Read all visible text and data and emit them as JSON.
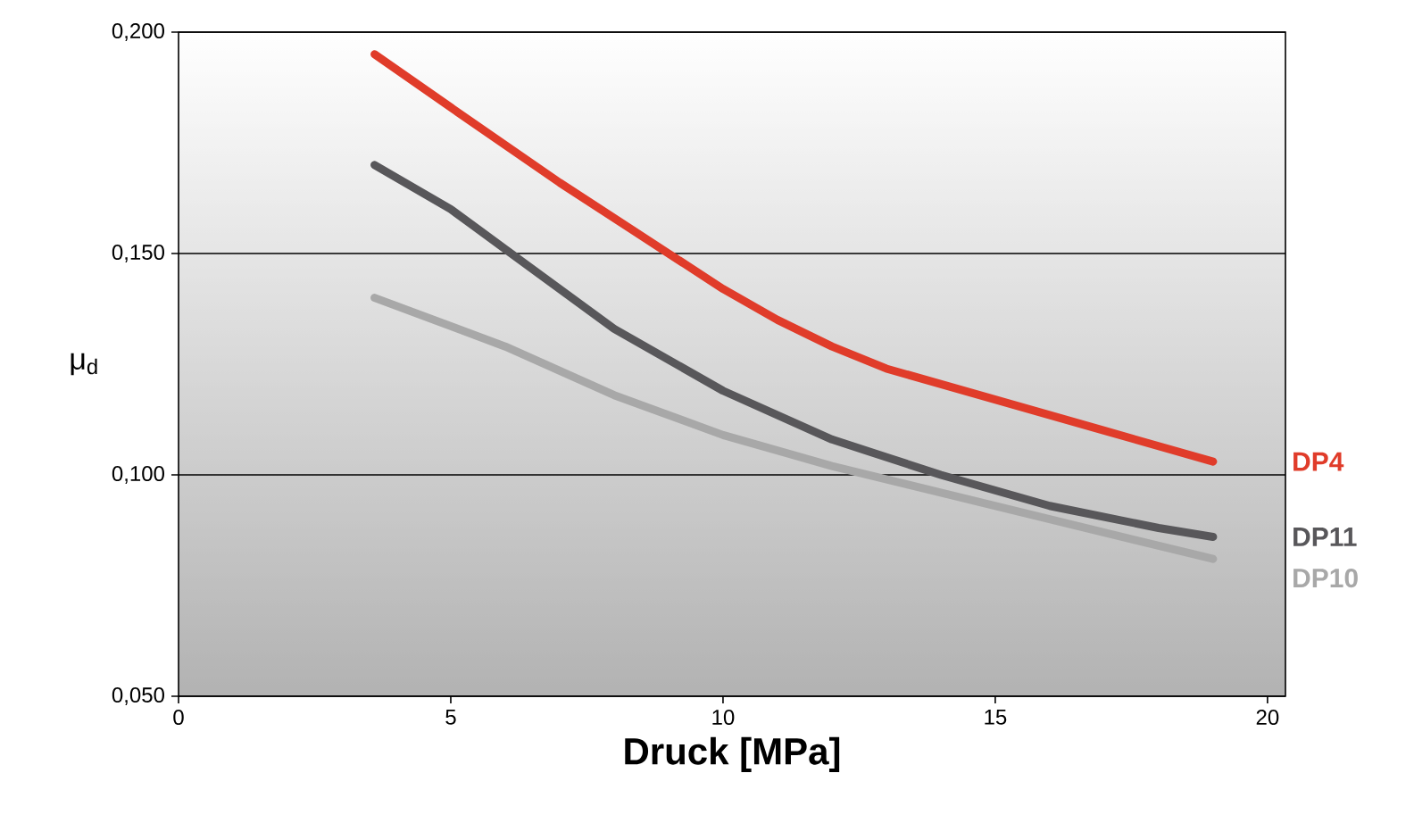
{
  "chart_data": {
    "type": "line",
    "xlabel": "Druck [MPa]",
    "ylabel": "μ$_{d}$",
    "xlim": [
      0,
      20.33
    ],
    "xticks": [
      0,
      5,
      10,
      15,
      20
    ],
    "ylim": [
      0.05,
      0.2
    ],
    "yticks": [
      {
        "value": 0.05,
        "label": "0,050"
      },
      {
        "value": 0.1,
        "label": "0,100"
      },
      {
        "value": 0.15,
        "label": "0,150"
      },
      {
        "value": 0.2,
        "label": "0,200"
      }
    ],
    "grid": "y",
    "series": [
      {
        "name": "DP4",
        "color": "#e03c2a",
        "x": [
          3.6,
          5,
          7,
          9,
          10,
          11,
          12,
          13,
          15,
          17,
          19
        ],
        "values": [
          0.195,
          0.183,
          0.166,
          0.15,
          0.142,
          0.135,
          0.129,
          0.124,
          0.117,
          0.11,
          0.103
        ]
      },
      {
        "name": "DP11",
        "color": "#58575a",
        "x": [
          3.6,
          5,
          6,
          8,
          10,
          12,
          14,
          16,
          18,
          19
        ],
        "values": [
          0.17,
          0.16,
          0.151,
          0.133,
          0.119,
          0.108,
          0.1,
          0.093,
          0.088,
          0.086
        ]
      },
      {
        "name": "DP10",
        "color": "#a8a8a8",
        "x": [
          3.6,
          6,
          8,
          10,
          12,
          14,
          16,
          18,
          19
        ],
        "values": [
          0.14,
          0.129,
          0.118,
          0.109,
          0.102,
          0.096,
          0.09,
          0.084,
          0.081
        ]
      }
    ]
  }
}
